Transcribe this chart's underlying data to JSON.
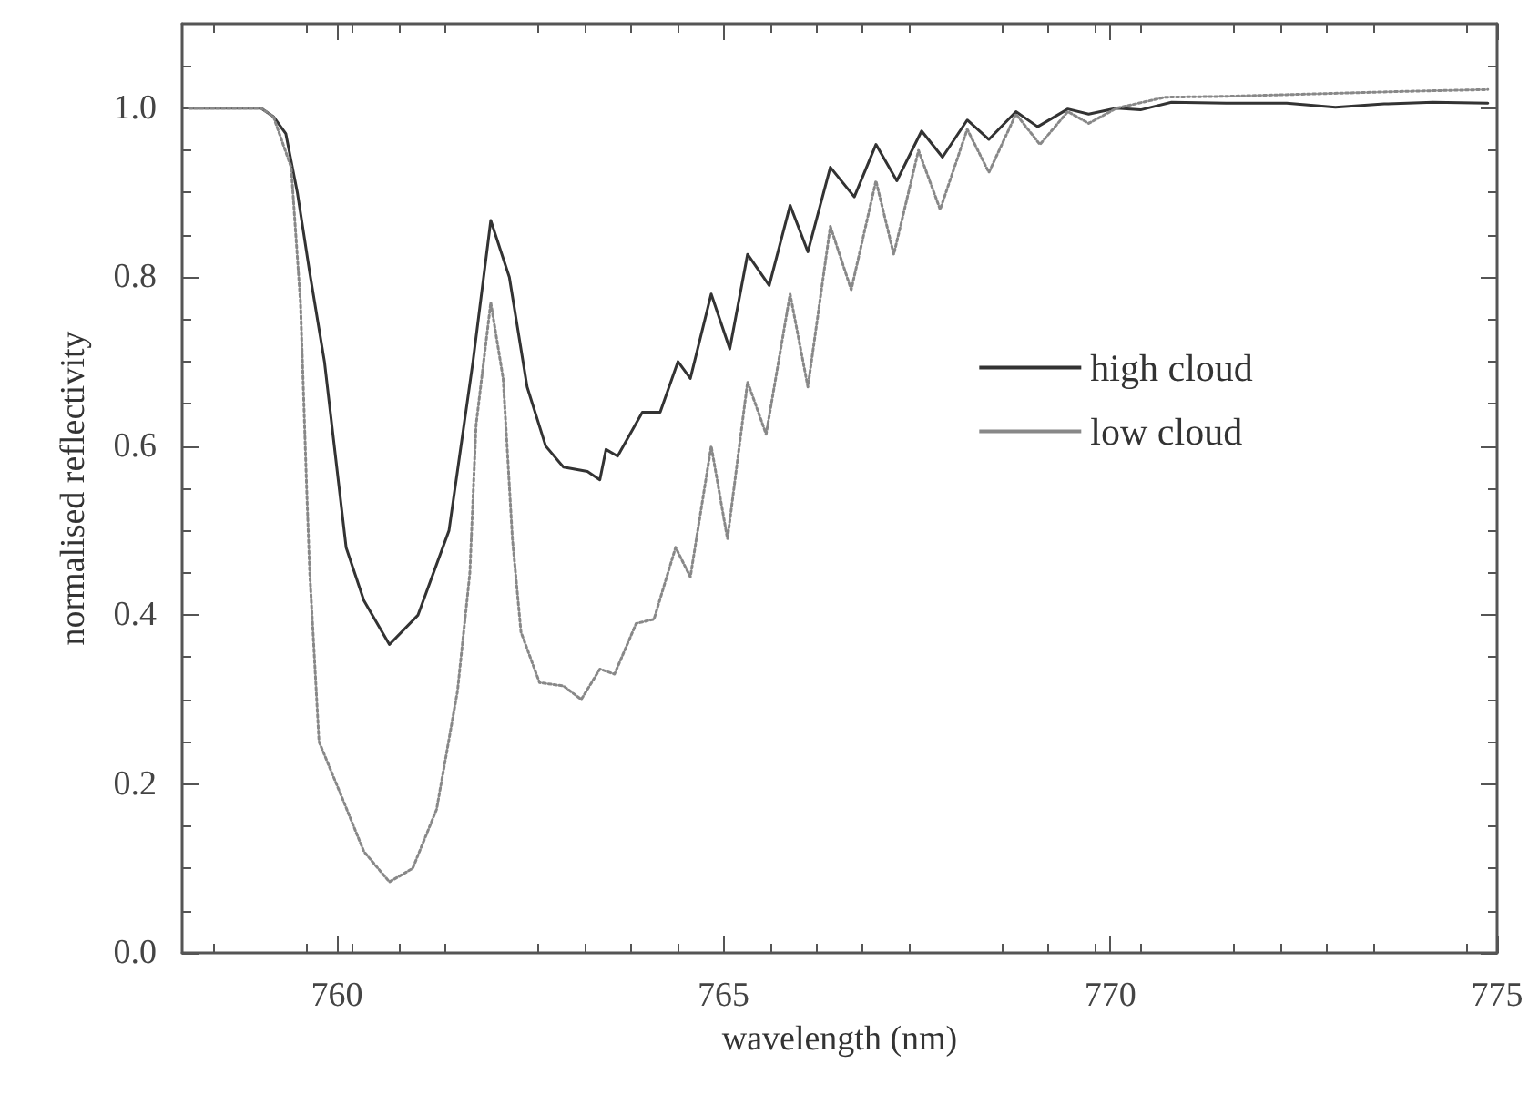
{
  "chart_data": {
    "type": "line",
    "xlabel": "wavelength (nm)",
    "ylabel": "normalised reflectivity",
    "xlim": [
      758,
      775
    ],
    "xticks": [
      760,
      765,
      770,
      775
    ],
    "ylim": [
      0,
      1.1
    ],
    "yticks": [
      {
        "value": 0,
        "label": "0.0"
      },
      {
        "value": 0.2,
        "label": "0.2"
      },
      {
        "value": 0.4,
        "label": "0.4"
      },
      {
        "value": 0.6,
        "label": "0.6"
      },
      {
        "value": 0.8,
        "label": "0.8"
      },
      {
        "value": 1,
        "label": "1.0"
      }
    ],
    "grid": false,
    "legend": "right",
    "marker": "none",
    "series": [
      {
        "name": "high cloud",
        "color": "#333333",
        "line_style": "solid",
        "x": [
          758.09,
          759.02,
          759.18,
          759.34,
          759.49,
          759.65,
          759.84,
          760.12,
          760.35,
          760.68,
          761.05,
          761.45,
          761.76,
          761.99,
          762.23,
          762.46,
          762.7,
          762.93,
          763.24,
          763.4,
          763.48,
          763.63,
          763.95,
          764.18,
          764.41,
          764.57,
          764.84,
          765.08,
          765.31,
          765.59,
          765.86,
          766.09,
          766.38,
          766.69,
          766.97,
          767.24,
          767.56,
          767.83,
          768.15,
          768.43,
          768.78,
          769.06,
          769.45,
          769.72,
          770.08,
          770.39,
          770.79,
          771.5,
          772.28,
          772.91,
          773.54,
          774.17,
          774.88
        ],
        "values": [
          1.0,
          1.0,
          0.99,
          0.97,
          0.9,
          0.805,
          0.7,
          0.48,
          0.417,
          0.365,
          0.4,
          0.5,
          0.7,
          0.867,
          0.8,
          0.67,
          0.6,
          0.575,
          0.57,
          0.56,
          0.596,
          0.588,
          0.64,
          0.64,
          0.7,
          0.68,
          0.78,
          0.715,
          0.827,
          0.79,
          0.885,
          0.83,
          0.93,
          0.895,
          0.957,
          0.914,
          0.973,
          0.942,
          0.986,
          0.963,
          0.996,
          0.978,
          0.999,
          0.993,
          1.0,
          0.998,
          1.007,
          1.006,
          1.006,
          1.001,
          1.005,
          1.007,
          1.006
        ]
      },
      {
        "name": "low cloud",
        "color": "#888888",
        "line_style": "dotted",
        "x": [
          758.09,
          759.02,
          759.18,
          759.41,
          759.53,
          759.61,
          759.65,
          759.77,
          760.04,
          760.35,
          760.68,
          760.98,
          761.29,
          761.56,
          761.72,
          761.8,
          761.99,
          762.15,
          762.27,
          762.38,
          762.62,
          762.93,
          763.16,
          763.4,
          763.59,
          763.87,
          764.1,
          764.38,
          764.57,
          764.84,
          765.05,
          765.31,
          765.55,
          765.86,
          766.09,
          766.38,
          766.65,
          766.97,
          767.2,
          767.52,
          767.8,
          768.15,
          768.43,
          768.78,
          769.09,
          769.45,
          769.72,
          770.08,
          770.71,
          771.5,
          772.28,
          773.07,
          773.86,
          774.88
        ],
        "values": [
          1.0,
          1.0,
          0.99,
          0.93,
          0.77,
          0.55,
          0.45,
          0.25,
          0.19,
          0.12,
          0.084,
          0.1,
          0.17,
          0.31,
          0.45,
          0.625,
          0.77,
          0.68,
          0.49,
          0.38,
          0.32,
          0.316,
          0.3,
          0.336,
          0.33,
          0.39,
          0.395,
          0.48,
          0.445,
          0.6,
          0.49,
          0.676,
          0.614,
          0.78,
          0.67,
          0.86,
          0.785,
          0.914,
          0.827,
          0.95,
          0.88,
          0.975,
          0.924,
          0.993,
          0.957,
          0.996,
          0.982,
          1.0,
          1.013,
          1.014,
          1.016,
          1.018,
          1.02,
          1.022
        ]
      }
    ]
  }
}
